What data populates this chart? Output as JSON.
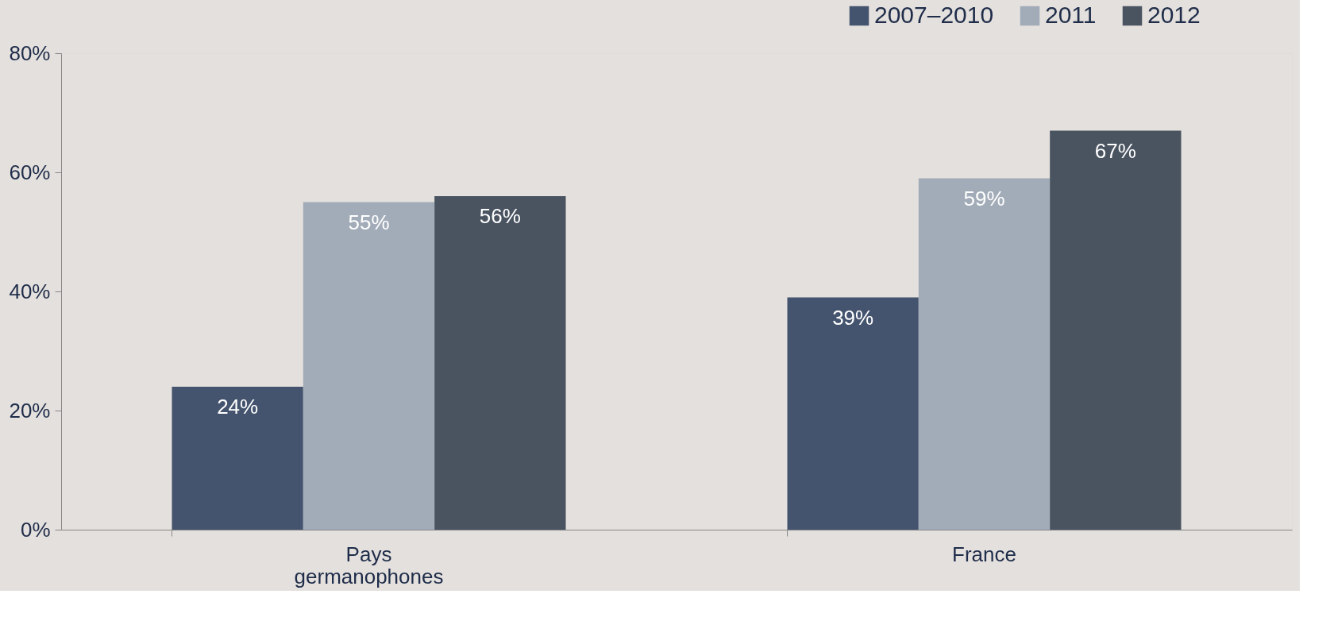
{
  "chart_data": {
    "type": "bar",
    "categories": [
      "Pays germanophones",
      "France"
    ],
    "series": [
      {
        "name": "2007–2010",
        "color": "#44546e",
        "values": [
          24,
          39
        ],
        "value_labels": [
          "24%",
          "39%"
        ]
      },
      {
        "name": "2011",
        "color": "#a2acb8",
        "values": [
          55,
          59
        ],
        "value_labels": [
          "55%",
          "59%"
        ]
      },
      {
        "name": "2012",
        "color": "#4a5461",
        "values": [
          56,
          67
        ],
        "value_labels": [
          "56%",
          "67%"
        ]
      }
    ],
    "ylim": [
      0,
      80
    ],
    "yticks": [
      {
        "value": 0,
        "label": "0%"
      },
      {
        "value": 20,
        "label": "20%"
      },
      {
        "value": 40,
        "label": "40%"
      },
      {
        "value": 60,
        "label": "60%"
      },
      {
        "value": 80,
        "label": "80%"
      }
    ],
    "grid": false,
    "legend": "top right"
  }
}
